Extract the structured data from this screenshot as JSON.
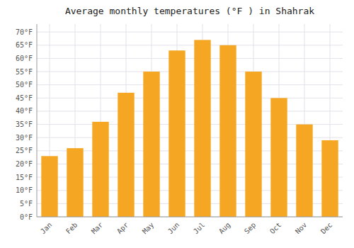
{
  "chart_data": {
    "type": "bar",
    "title": "Average monthly temperatures (°F ) in Shahrak",
    "categories": [
      "Jan",
      "Feb",
      "Mar",
      "Apr",
      "May",
      "Jun",
      "Jul",
      "Aug",
      "Sep",
      "Oct",
      "Nov",
      "Dec"
    ],
    "values": [
      23,
      26,
      36,
      47,
      55,
      63,
      67,
      65,
      55,
      45,
      35,
      29
    ],
    "color": "#F5A623",
    "ylim": [
      0,
      73
    ],
    "yticks": [
      {
        "value": 0,
        "label": "0°F"
      },
      {
        "value": 5,
        "label": "5°F"
      },
      {
        "value": 10,
        "label": "10°F"
      },
      {
        "value": 15,
        "label": "15°F"
      },
      {
        "value": 20,
        "label": "20°F"
      },
      {
        "value": 25,
        "label": "25°F"
      },
      {
        "value": 30,
        "label": "30°F"
      },
      {
        "value": 35,
        "label": "35°F"
      },
      {
        "value": 40,
        "label": "40°F"
      },
      {
        "value": 45,
        "label": "45°F"
      },
      {
        "value": 50,
        "label": "50°F"
      },
      {
        "value": 55,
        "label": "55°F"
      },
      {
        "value": 60,
        "label": "60°F"
      },
      {
        "value": 65,
        "label": "65°F"
      },
      {
        "value": 70,
        "label": "70°F"
      }
    ],
    "grid": true
  }
}
